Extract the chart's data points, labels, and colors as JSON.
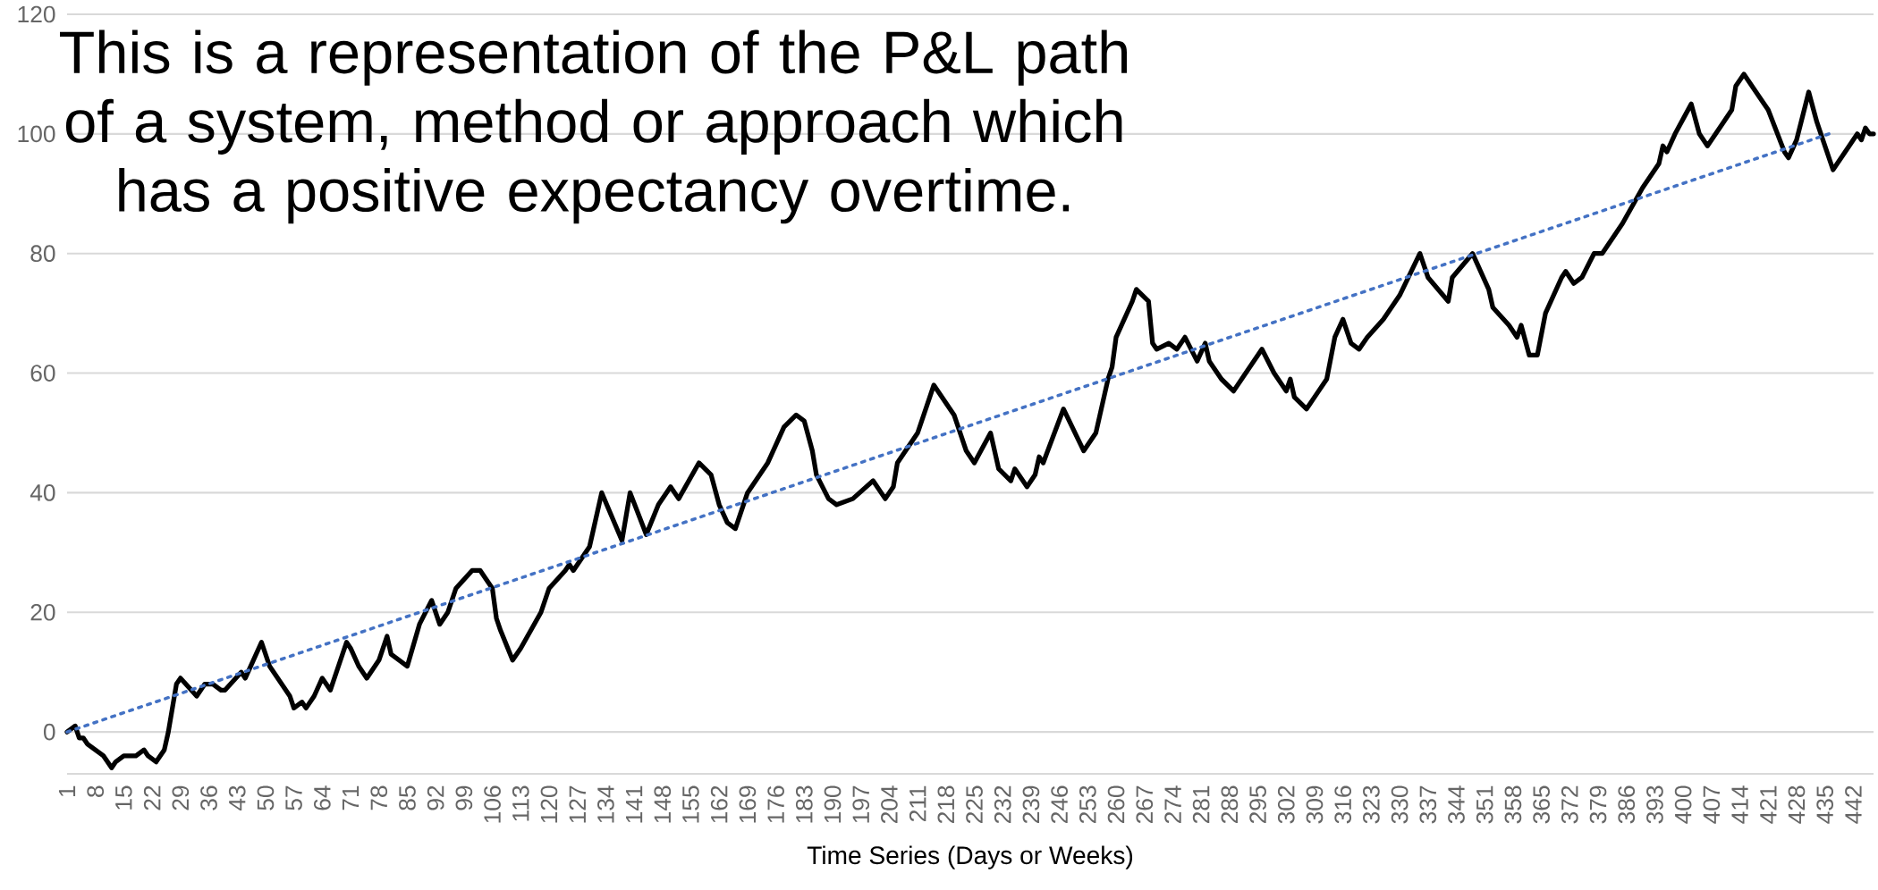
{
  "chart_data": {
    "type": "line",
    "xlabel": "Time Series (Days or Weeks)",
    "annotations": [
      "This is a representation of the P&L path of a system, method or approach which has a positive expectancy overtime."
    ],
    "xlim": [
      1,
      447
    ],
    "ylim": [
      -7,
      120
    ],
    "xticks": [
      1,
      8,
      15,
      22,
      29,
      36,
      43,
      50,
      57,
      64,
      71,
      78,
      85,
      92,
      99,
      106,
      113,
      120,
      127,
      134,
      141,
      148,
      155,
      162,
      169,
      176,
      183,
      190,
      197,
      204,
      211,
      218,
      225,
      232,
      239,
      246,
      253,
      260,
      267,
      274,
      281,
      288,
      295,
      302,
      309,
      316,
      323,
      330,
      337,
      344,
      351,
      358,
      365,
      372,
      379,
      386,
      393,
      400,
      407,
      414,
      421,
      428,
      435,
      442
    ],
    "yticks": [
      0,
      20,
      40,
      60,
      80,
      100,
      120
    ],
    "grid": "y",
    "marker": "none",
    "line_style": "solid",
    "series": [
      {
        "color": "#000000",
        "x": [
          1,
          3,
          4,
          5,
          6,
          10,
          12,
          13,
          15,
          18,
          20,
          21,
          23,
          25,
          26,
          28,
          29,
          33,
          35,
          37,
          39,
          40,
          44,
          45,
          47,
          49,
          51,
          56,
          57,
          59,
          60,
          62,
          64,
          66,
          70,
          71,
          73,
          75,
          78,
          80,
          81,
          85,
          88,
          91,
          93,
          95,
          97,
          101,
          103,
          106,
          107,
          108,
          111,
          113,
          118,
          120,
          124,
          125,
          126,
          130,
          131,
          133,
          138,
          140,
          144,
          147,
          150,
          152,
          157,
          160,
          162,
          164,
          166,
          169,
          174,
          178,
          181,
          183,
          185,
          186,
          189,
          191,
          195,
          200,
          203,
          205,
          206,
          211,
          215,
          220,
          223,
          225,
          229,
          231,
          234,
          235,
          238,
          240,
          241,
          242,
          247,
          252,
          255,
          258,
          259,
          260,
          264,
          265,
          268,
          269,
          270,
          273,
          275,
          277,
          280,
          282,
          283,
          286,
          289,
          292,
          296,
          299,
          302,
          303,
          304,
          307,
          310,
          312,
          314,
          316,
          318,
          320,
          322,
          326,
          330,
          335,
          337,
          342,
          343,
          348,
          352,
          353,
          357,
          359,
          360,
          362,
          364,
          366,
          370,
          371,
          373,
          375,
          378,
          380,
          385,
          390,
          394,
          395,
          396,
          398,
          402,
          404,
          406,
          410,
          412,
          413,
          415,
          419,
          421,
          425,
          426,
          428,
          431,
          433,
          434,
          437,
          441,
          443,
          444,
          445,
          446,
          447
        ],
        "values": [
          0,
          1,
          -1,
          -1,
          -2,
          -4,
          -6,
          -5,
          -4,
          -4,
          -3,
          -4,
          -5,
          -3,
          0,
          8,
          9,
          6,
          8,
          8,
          7,
          7,
          10,
          9,
          12,
          15,
          11,
          6,
          4,
          5,
          4,
          6,
          9,
          7,
          15,
          14,
          11,
          9,
          12,
          16,
          13,
          11,
          18,
          22,
          18,
          20,
          24,
          27,
          27,
          24,
          19,
          17,
          12,
          14,
          20,
          24,
          27,
          28,
          27,
          31,
          34,
          40,
          32,
          40,
          33,
          38,
          41,
          39,
          45,
          43,
          38,
          35,
          34,
          40,
          45,
          51,
          53,
          52,
          47,
          43,
          39,
          38,
          39,
          42,
          39,
          41,
          45,
          50,
          58,
          53,
          47,
          45,
          50,
          44,
          42,
          44,
          41,
          43,
          46,
          45,
          54,
          47,
          50,
          59,
          61,
          66,
          72,
          74,
          72,
          65,
          64,
          65,
          64,
          66,
          62,
          65,
          62,
          59,
          57,
          60,
          64,
          60,
          57,
          59,
          56,
          54,
          57,
          59,
          66,
          69,
          65,
          64,
          66,
          69,
          73,
          80,
          76,
          72,
          76,
          80,
          74,
          71,
          68,
          66,
          68,
          63,
          63,
          70,
          76,
          77,
          75,
          76,
          80,
          80,
          85,
          91,
          95,
          98,
          97,
          100,
          105,
          100,
          98,
          102,
          104,
          108,
          110,
          106,
          104,
          97,
          96,
          99,
          107,
          102,
          100,
          94,
          98,
          100,
          99,
          101,
          100,
          100
        ]
      },
      {
        "type": "line",
        "color": "#4472c4",
        "line_style": "dotted",
        "x": [
          1,
          436
        ],
        "values": [
          0,
          100
        ]
      }
    ]
  }
}
